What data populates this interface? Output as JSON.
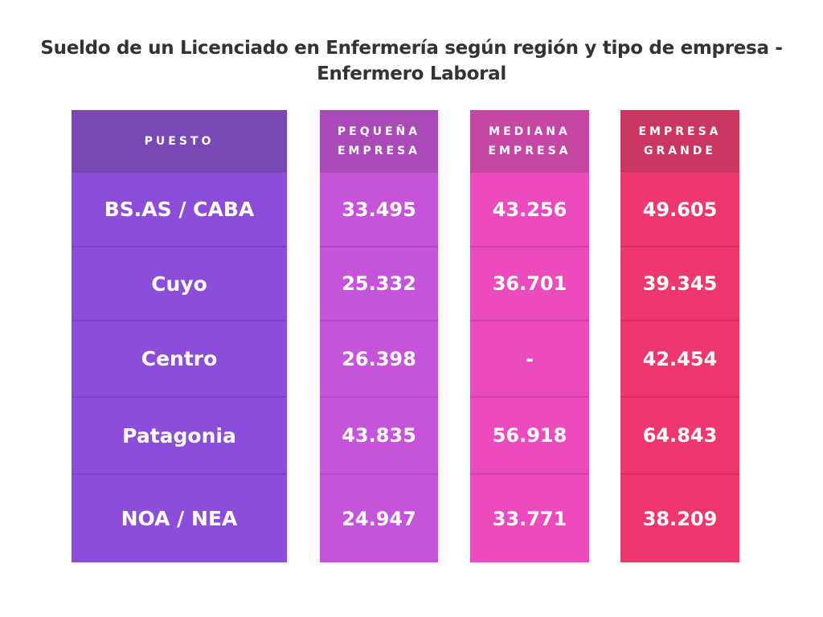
{
  "title": "Sueldo de un Licenciado en Enfermería según región y tipo de empresa - Enfermero Laboral",
  "columns": [
    {
      "header": "PUESTO",
      "header_color": "#7a48b5",
      "body_color": "#8c4ed8"
    },
    {
      "header": "PEQUEÑA EMPRESA",
      "header_color": "#a84bb8",
      "body_color": "#c654db"
    },
    {
      "header": "MEDIANA EMPRESA",
      "header_color": "#c646a4",
      "body_color": "#ec4bbd"
    },
    {
      "header": "EMPRESA GRANDE",
      "header_color": "#c9365f",
      "body_color": "#ee376e"
    }
  ],
  "rows": [
    [
      "BS.AS / CABA",
      "33.495",
      "43.256",
      "49.605"
    ],
    [
      "Cuyo",
      "25.332",
      "36.701",
      "39.345"
    ],
    [
      "Centro",
      "26.398",
      "-",
      "42.454"
    ],
    [
      "Patagonia",
      "43.835",
      "56.918",
      "64.843"
    ],
    [
      "NOA / NEA",
      "24.947",
      "33.771",
      "38.209"
    ]
  ]
}
